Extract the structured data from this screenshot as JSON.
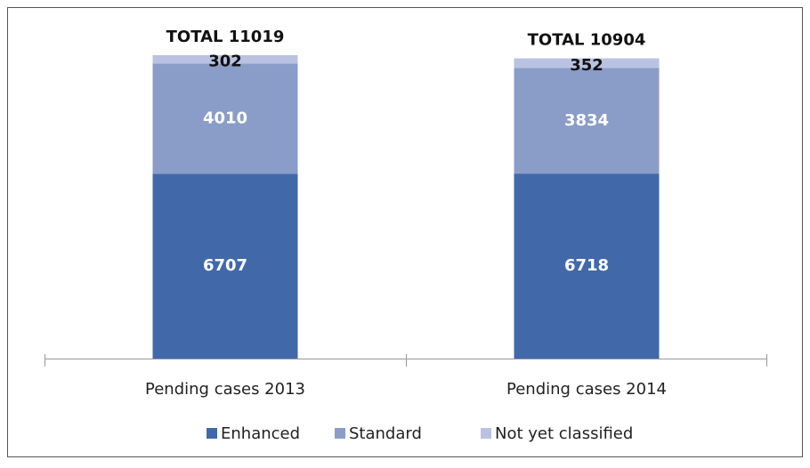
{
  "chart_data": {
    "type": "stacked_bar",
    "categories": [
      "Pending cases 2013",
      "Pending cases 2014"
    ],
    "series": [
      {
        "name": "Enhanced",
        "color": "#4169aa",
        "values": [
          6707,
          6718
        ]
      },
      {
        "name": "Standard",
        "color": "#8a9cc8",
        "values": [
          4010,
          3834
        ]
      },
      {
        "name": "Not yet classified",
        "color": "#b9c3e1",
        "values": [
          302,
          352
        ]
      }
    ],
    "annotations": [
      "TOTAL 11019",
      "TOTAL 10904"
    ],
    "legend": "bottom"
  }
}
